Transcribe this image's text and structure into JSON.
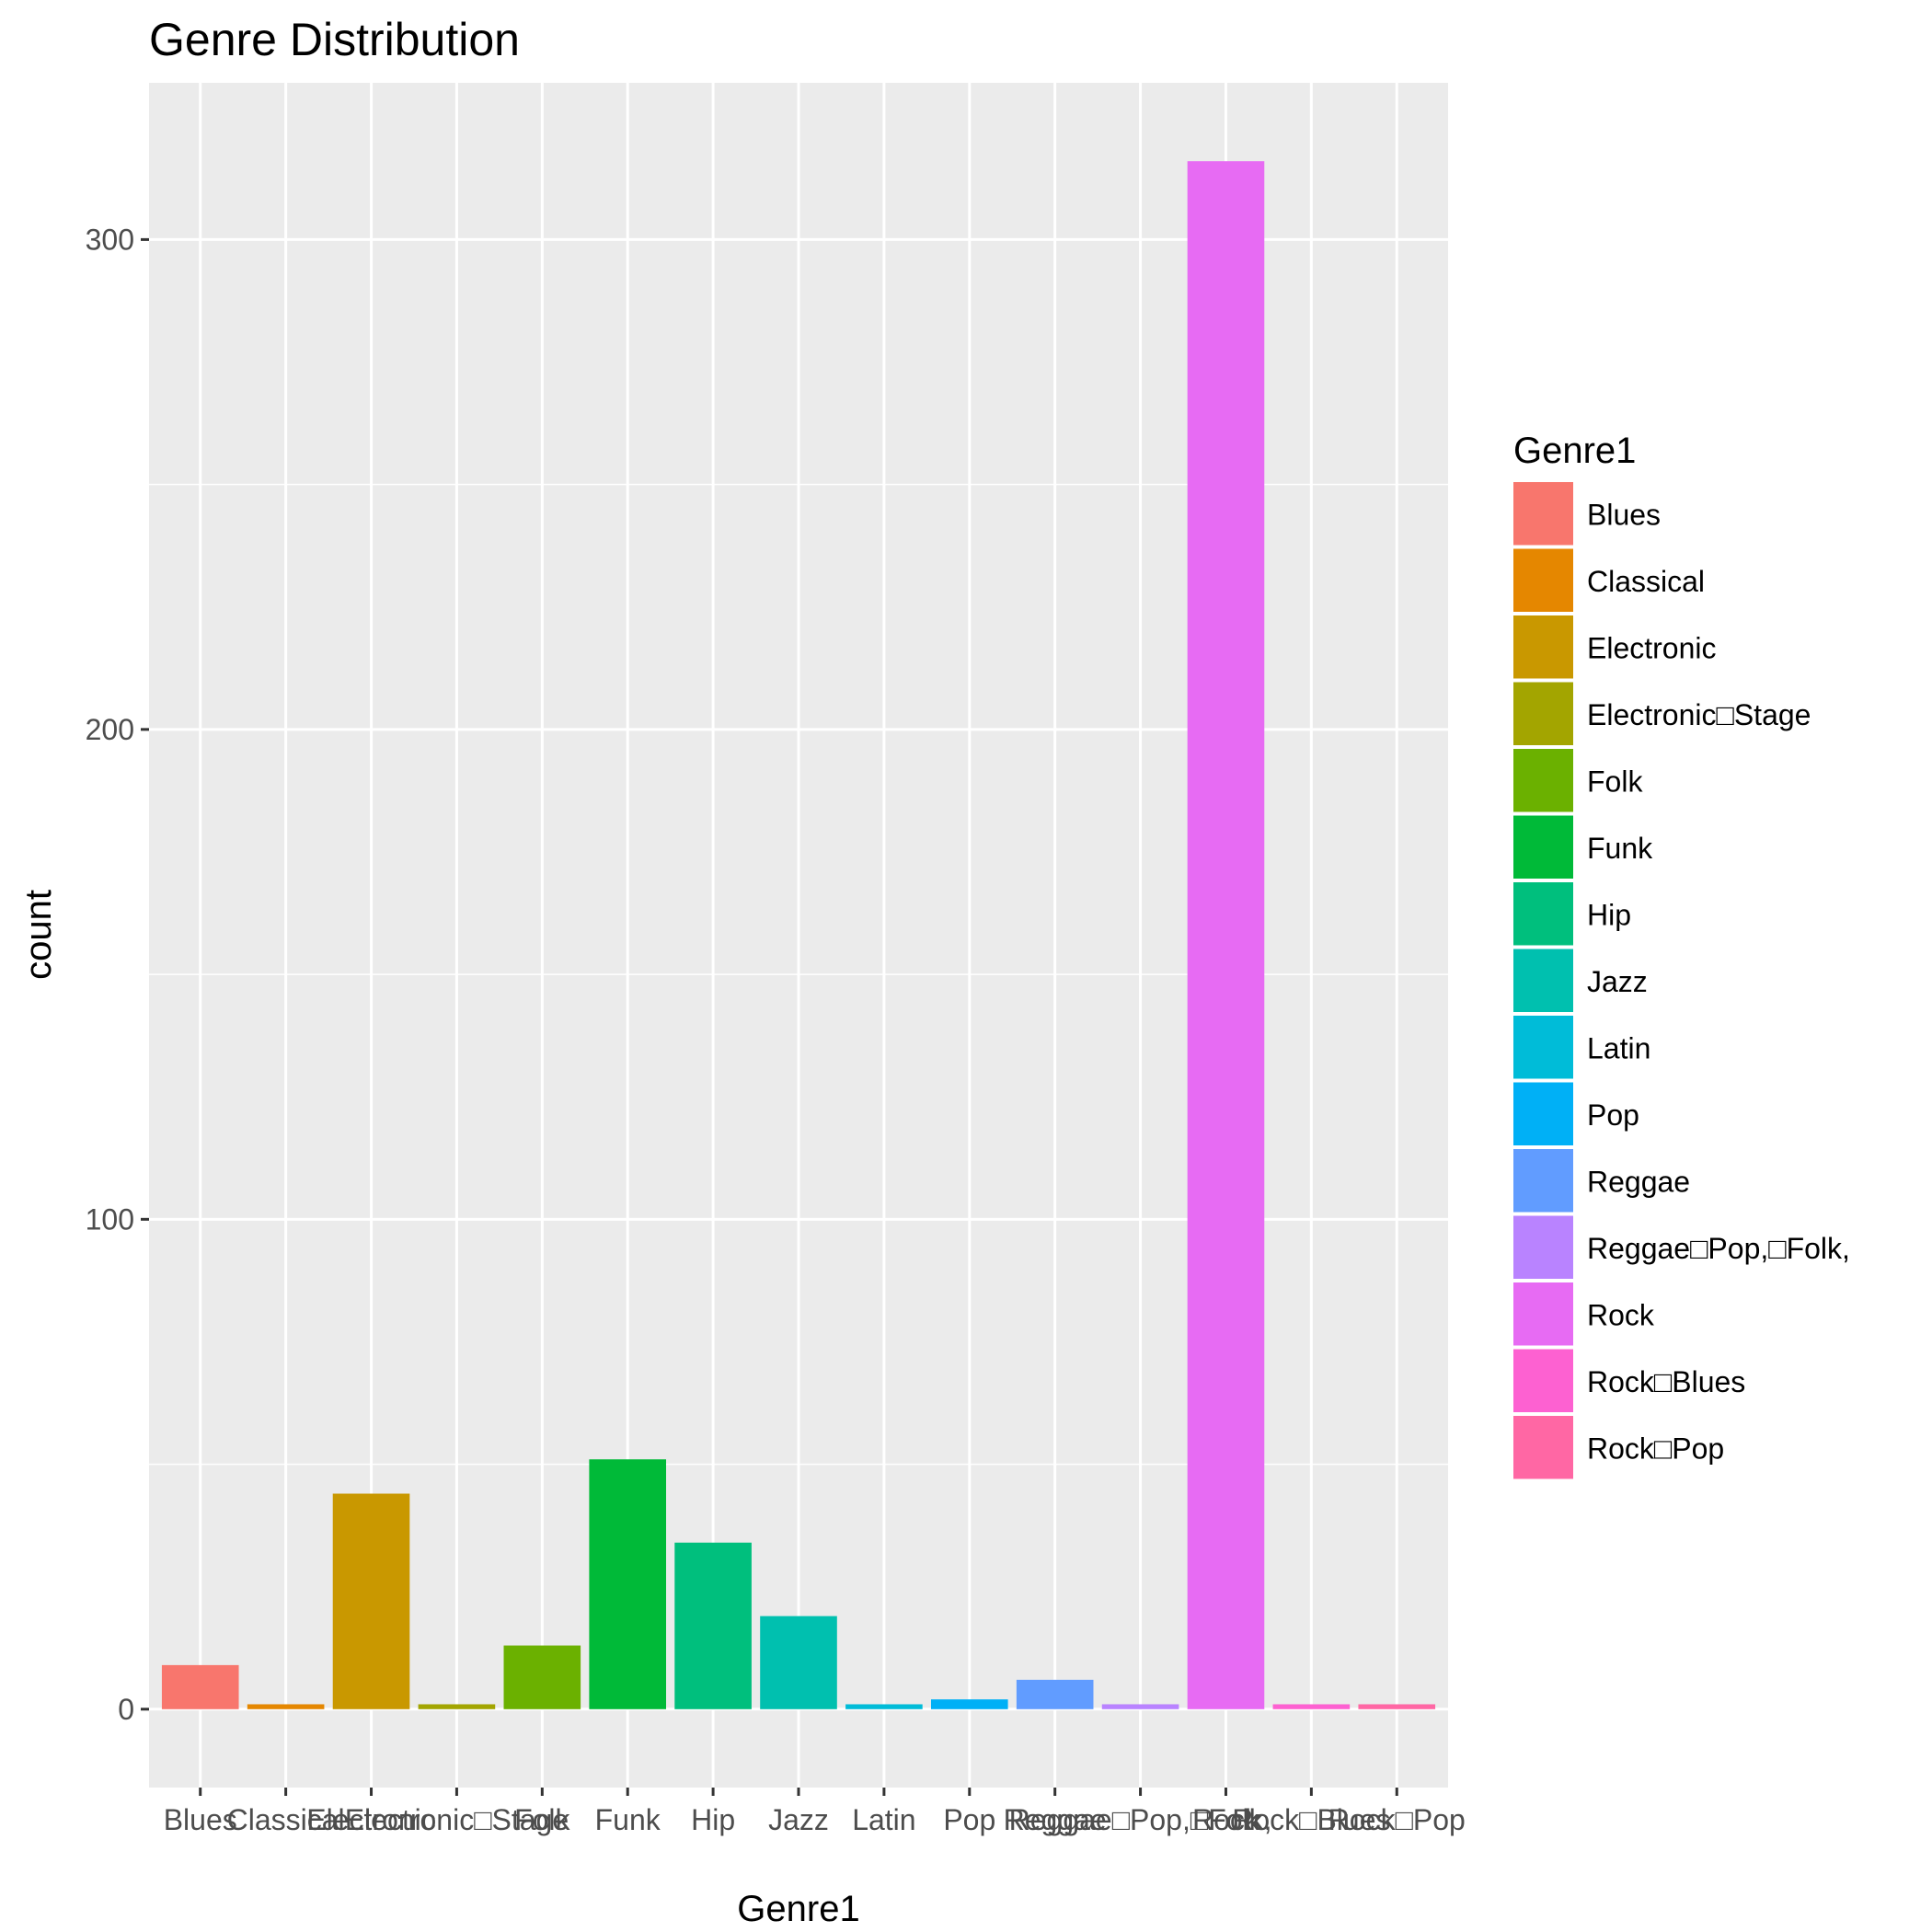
{
  "chart_data": {
    "type": "bar",
    "title": "Genre Distribution",
    "xlabel": "Genre1",
    "ylabel": "count",
    "categories": [
      "Blues",
      "Classical",
      "Electronic",
      "Electronic□Stage",
      "Folk",
      "Funk",
      "Hip",
      "Jazz",
      "Latin",
      "Pop",
      "Reggae",
      "Reggae□Pop,□Folk,",
      "Rock",
      "Rock□Blues",
      "Rock□Pop"
    ],
    "values": [
      9,
      1,
      44,
      1,
      13,
      51,
      34,
      19,
      1,
      2,
      6,
      1,
      316,
      1,
      1
    ],
    "colors": [
      "#F8766D",
      "#E58700",
      "#C99800",
      "#A3A500",
      "#6BB100",
      "#00BA38",
      "#00BF7D",
      "#00C0AF",
      "#00BCD8",
      "#00B0F6",
      "#619CFF",
      "#B983FF",
      "#E76BF3",
      "#FD61D1",
      "#FF67A4"
    ],
    "yticks": [
      0,
      100,
      200,
      300
    ],
    "ylim": [
      -16,
      332
    ],
    "grid": true,
    "legend": {
      "title": "Genre1",
      "position": "right"
    }
  }
}
